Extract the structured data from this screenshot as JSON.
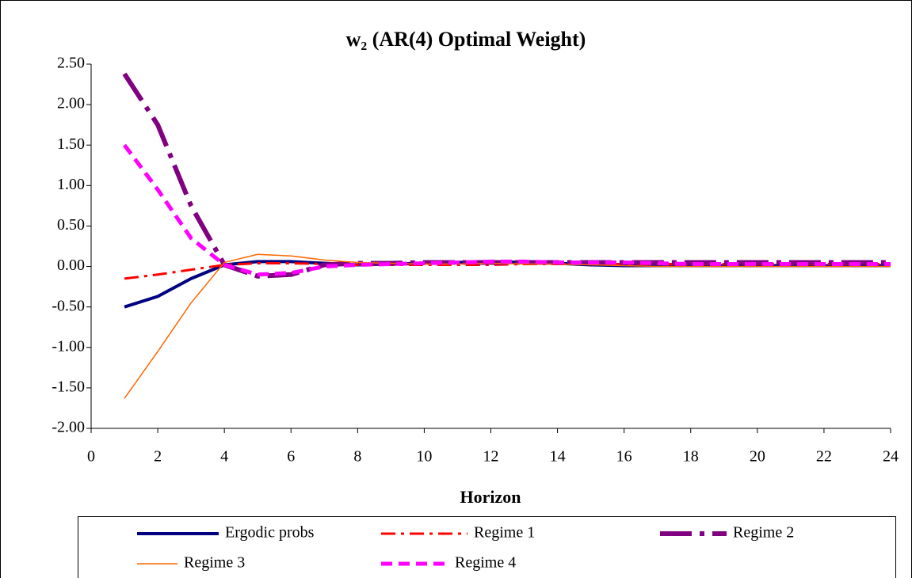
{
  "chart_data": {
    "type": "line",
    "title": "w₂ (AR(4) Optimal Weight)",
    "x_label": "Horizon",
    "x": [
      1,
      2,
      3,
      4,
      5,
      6,
      7,
      8,
      9,
      10,
      11,
      12,
      13,
      14,
      15,
      16,
      17,
      18,
      19,
      20,
      21,
      22,
      23,
      24
    ],
    "xlim": [
      0,
      24
    ],
    "xticks": [
      0,
      2,
      4,
      6,
      8,
      10,
      12,
      14,
      16,
      18,
      20,
      22,
      24
    ],
    "ylim": [
      -2,
      2.5
    ],
    "yticks": [
      {
        "value": -2,
        "label": "-2.00"
      },
      {
        "value": -1.5,
        "label": "-1.50"
      },
      {
        "value": -1,
        "label": "-1.00"
      },
      {
        "value": -0.5,
        "label": "-0.50"
      },
      {
        "value": 0,
        "label": "0.00"
      },
      {
        "value": 0.5,
        "label": "0.50"
      },
      {
        "value": 1,
        "label": "1.00"
      },
      {
        "value": 1.5,
        "label": "1.50"
      },
      {
        "value": 2,
        "label": "2.00"
      },
      {
        "value": 2.5,
        "label": "2.50"
      }
    ],
    "series": [
      {
        "name": "Ergodic probs",
        "color": "#000080",
        "values": [
          -0.5,
          -0.37,
          -0.15,
          0.02,
          0.06,
          0.06,
          0.04,
          0.02,
          0.03,
          0.04,
          0.05,
          0.06,
          0.05,
          0.04,
          0.02,
          0.01,
          0.01,
          0.01,
          0.01,
          0.01,
          0.01,
          0.01,
          0.01,
          0.01
        ]
      },
      {
        "name": "Regime 1",
        "color": "#ff0000",
        "values": [
          -0.15,
          -0.1,
          -0.04,
          0.02,
          0.04,
          0.04,
          0.03,
          0.02,
          0.02,
          0.02,
          0.02,
          0.02,
          0.03,
          0.03,
          0.03,
          0.03,
          0.03,
          0.03,
          0.03,
          0.03,
          0.03,
          0.03,
          0.03,
          0.03
        ]
      },
      {
        "name": "Regime 2",
        "color": "#800080",
        "values": [
          2.38,
          1.75,
          0.75,
          0.02,
          -0.12,
          -0.1,
          0.02,
          0.04,
          0.04,
          0.05,
          0.05,
          0.05,
          0.05,
          0.05,
          0.05,
          0.05,
          0.05,
          0.05,
          0.05,
          0.05,
          0.05,
          0.05,
          0.05,
          0.05
        ]
      },
      {
        "name": "Regime 3",
        "color": "#ff6600",
        "values": [
          -1.63,
          -1.05,
          -0.45,
          0.05,
          0.15,
          0.13,
          0.08,
          0.05,
          0.04,
          0.03,
          0.03,
          0.04,
          0.03,
          0.03,
          0.02,
          0.01,
          0.0,
          0.0,
          0.0,
          0.0,
          0.0,
          0.0,
          0.0,
          0.0
        ]
      },
      {
        "name": "Regime 4",
        "color": "#ff00ff",
        "values": [
          1.5,
          0.95,
          0.35,
          0.02,
          -0.1,
          -0.08,
          0.0,
          0.02,
          0.03,
          0.04,
          0.05,
          0.06,
          0.06,
          0.05,
          0.05,
          0.05,
          0.04,
          0.03,
          0.03,
          0.03,
          0.03,
          0.03,
          0.03,
          0.03
        ]
      }
    ]
  }
}
